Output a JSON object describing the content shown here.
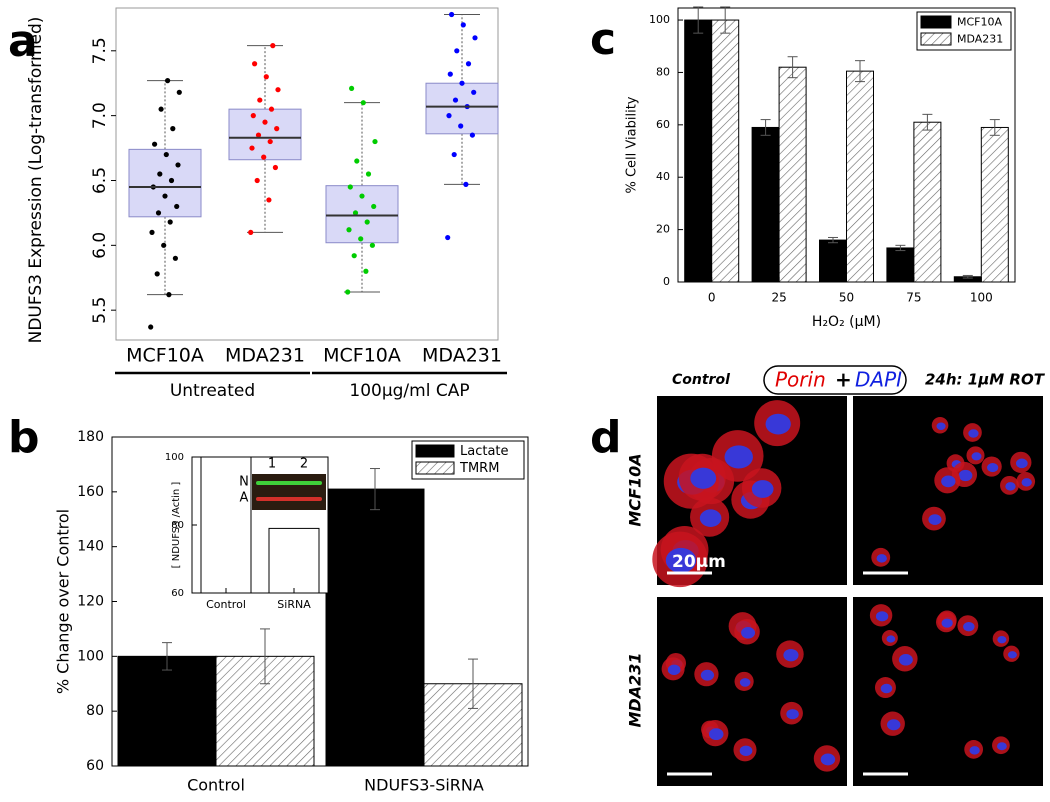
{
  "panel_labels": [
    "a",
    "b",
    "c",
    "d"
  ],
  "chart_data": [
    {
      "type": "box",
      "ylabel": "NDUFS3 Expression (Log-transformed)",
      "categories": [
        "MCF10A",
        "MDA231",
        "MCF10A",
        "MDA231"
      ],
      "groups": [
        "Untreated",
        "100µg/ml CAP"
      ],
      "box_color": "#d9d9f7",
      "boxes": [
        {
          "color": "#000000",
          "whisker_low": 5.62,
          "q1": 6.22,
          "median": 6.45,
          "q3": 6.74,
          "whisker_high": 7.27,
          "points": [
            5.37,
            5.62,
            5.78,
            5.9,
            6.0,
            6.1,
            6.18,
            6.25,
            6.3,
            6.38,
            6.45,
            6.5,
            6.55,
            6.62,
            6.7,
            6.78,
            6.9,
            7.05,
            7.18,
            7.27
          ]
        },
        {
          "color": "#ff0000",
          "whisker_low": 6.1,
          "q1": 6.66,
          "median": 6.83,
          "q3": 7.05,
          "whisker_high": 7.54,
          "points": [
            6.1,
            6.35,
            6.5,
            6.6,
            6.68,
            6.75,
            6.8,
            6.85,
            6.9,
            6.95,
            7.0,
            7.05,
            7.12,
            7.2,
            7.3,
            7.4,
            7.54
          ]
        },
        {
          "color": "#00cc00",
          "whisker_low": 5.64,
          "q1": 6.02,
          "median": 6.23,
          "q3": 6.46,
          "whisker_high": 7.1,
          "points": [
            5.64,
            5.8,
            5.92,
            6.0,
            6.05,
            6.12,
            6.18,
            6.25,
            6.3,
            6.38,
            6.45,
            6.55,
            6.65,
            6.8,
            7.1,
            7.21
          ]
        },
        {
          "color": "#0000ff",
          "whisker_low": 6.47,
          "q1": 6.86,
          "median": 7.07,
          "q3": 7.25,
          "whisker_high": 7.78,
          "points": [
            6.06,
            6.47,
            6.7,
            6.85,
            6.92,
            7.0,
            7.07,
            7.12,
            7.18,
            7.25,
            7.32,
            7.4,
            7.5,
            7.6,
            7.7,
            7.78
          ]
        }
      ],
      "ylim": [
        5.27,
        7.83
      ],
      "yticks": [
        5.5,
        {
          "value": 6,
          "label": "6.0"
        },
        6.5,
        {
          "value": 7,
          "label": "7.0"
        },
        7.5
      ]
    },
    {
      "type": "bar",
      "ylabel": "% Change over Control",
      "categories": [
        "Control",
        "NDUFS3-SiRNA"
      ],
      "series": [
        {
          "name": "Lactate",
          "color": "#000000",
          "values": [
            100,
            161
          ],
          "errors": [
            5,
            7.5
          ]
        },
        {
          "name": "TMRM",
          "color": "#ffffff",
          "hatch": true,
          "values": [
            100,
            90
          ],
          "errors": [
            10,
            9
          ]
        }
      ],
      "ylim": [
        60,
        180
      ],
      "yticks": [
        60,
        80,
        100,
        120,
        140,
        160,
        180
      ],
      "legend": "upper-right"
    },
    {
      "type": "bar",
      "ylabel": "[ NDUFS3 /Actin ]",
      "categories": [
        "Control",
        "SiRNA"
      ],
      "values": [
        100,
        79
      ],
      "color": "#ffffff",
      "ylim": [
        60,
        100
      ],
      "yticks": [
        60,
        80,
        100
      ],
      "blot": {
        "lanes": [
          "1",
          "2"
        ],
        "bands": [
          "N",
          "A"
        ]
      }
    },
    {
      "type": "bar",
      "xlabel": "H₂O₂ (μM)",
      "ylabel": "% Cell Viability",
      "categories": [
        "0",
        "25",
        "50",
        "75",
        "100"
      ],
      "series": [
        {
          "name": "MCF10A",
          "color": "#000000",
          "values": [
            100,
            59,
            16,
            13,
            2
          ],
          "errors": [
            5,
            3,
            1,
            1,
            0.5
          ]
        },
        {
          "name": "MDA231",
          "color": "#ffffff",
          "hatch": true,
          "values": [
            100,
            82,
            80.5,
            61,
            59
          ],
          "errors": [
            5,
            4,
            4,
            3,
            3
          ]
        }
      ],
      "ylim": [
        0,
        104.6
      ],
      "yticks": [
        0,
        20,
        40,
        60,
        80,
        100
      ],
      "legend": "upper-right"
    }
  ],
  "micrograph": {
    "columns": [
      "Control",
      "24h: 1μM ROT"
    ],
    "stain": {
      "red": "Porin",
      "plus": "+",
      "blue": "DAPI"
    },
    "rows": [
      "MCF10A",
      "MDA231"
    ],
    "scale_bar": "20μm"
  }
}
